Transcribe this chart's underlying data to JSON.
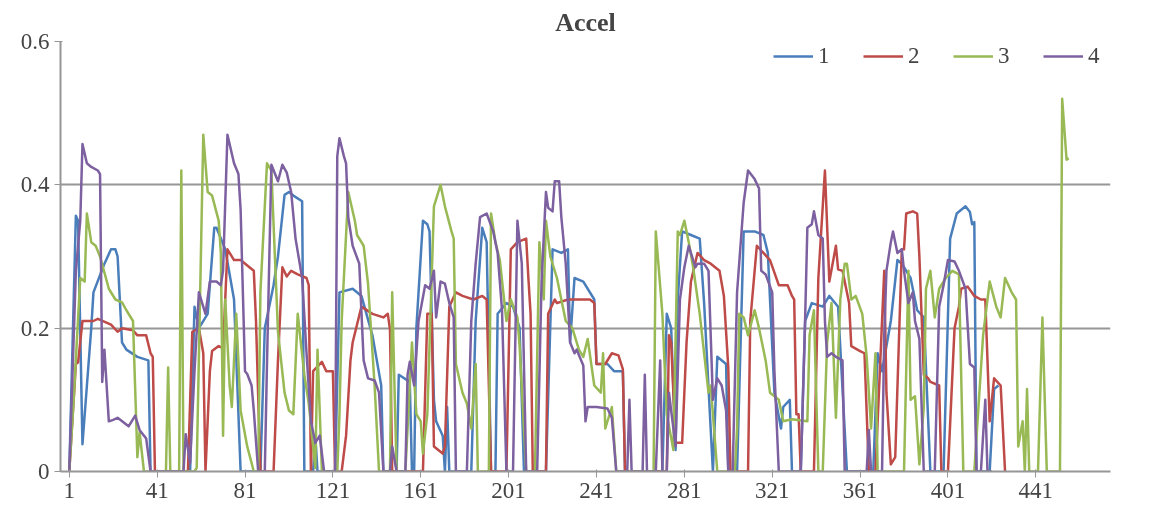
{
  "chart_data": {
    "type": "line",
    "title": "Accel",
    "xlim": [
      -3,
      475
    ],
    "xticks": [
      1,
      41,
      81,
      121,
      161,
      201,
      241,
      281,
      321,
      361,
      401,
      441
    ],
    "ylim": [
      0,
      0.6
    ],
    "yticks": [
      0,
      0.2,
      0.4,
      0.6
    ],
    "grid": "y",
    "legend": "top right",
    "marker": "none",
    "line_style": "solid",
    "series": [
      {
        "name": "1",
        "color": "#4a7ebb",
        "x": [
          1,
          4,
          5,
          7,
          11,
          12,
          17,
          20,
          22,
          23,
          25,
          27,
          32,
          37,
          38,
          56,
          58,
          60,
          64,
          67,
          68,
          72,
          76,
          79,
          88,
          90,
          94,
          96,
          99,
          101,
          103,
          107,
          108,
          112,
          113,
          114,
          122,
          124,
          130,
          134,
          139,
          143,
          144,
          150,
          151,
          156,
          157,
          158,
          159,
          162,
          164,
          165,
          167,
          168,
          171,
          172,
          173,
          174,
          184,
          186,
          189,
          191,
          193,
          195,
          196,
          200,
          203,
          206,
          208,
          218,
          221,
          225,
          228,
          229,
          231,
          235,
          240,
          241,
          246,
          249,
          253,
          254,
          271,
          273,
          275,
          277,
          278,
          280,
          284,
          288,
          290,
          294,
          296,
          300,
          301,
          305,
          308,
          313,
          317,
          319,
          322,
          325,
          326,
          329,
          330,
          334,
          336,
          339,
          344,
          347,
          351,
          355,
          367,
          369,
          371,
          375,
          378,
          380,
          384,
          387,
          390,
          393,
          399,
          402,
          405,
          409,
          411,
          412,
          413,
          414,
          420,
          422,
          424
        ],
        "values": [
          0,
          0.357,
          0.35,
          0.038,
          0.2,
          0.25,
          0.29,
          0.31,
          0.31,
          0.3,
          0.18,
          0.17,
          0.16,
          0.155,
          0,
          0,
          0.23,
          0.2,
          0.22,
          0.34,
          0.34,
          0.31,
          0.24,
          0,
          0,
          0.2,
          0.26,
          0.3,
          0.386,
          0.39,
          0.385,
          0.377,
          0,
          0,
          0.05,
          0,
          0,
          0.25,
          0.255,
          0.245,
          0.19,
          0.12,
          0,
          0,
          0.135,
          0.125,
          0,
          0,
          0.2,
          0.35,
          0.345,
          0.335,
          0.1,
          0.07,
          0.05,
          0,
          0.09,
          0,
          0,
          0.21,
          0.34,
          0.32,
          0,
          0,
          0.22,
          0.235,
          0.23,
          0.2,
          0,
          0,
          0.31,
          0.305,
          0.31,
          0.18,
          0.27,
          0.265,
          0.24,
          0.15,
          0.15,
          0.14,
          0.14,
          0,
          0,
          0.22,
          0.2,
          0.03,
          0.24,
          0.335,
          0.33,
          0.325,
          0.235,
          0,
          0.16,
          0.15,
          0,
          0,
          0.335,
          0.335,
          0.33,
          0.305,
          0.11,
          0.06,
          0.09,
          0.1,
          0,
          0,
          0.21,
          0.235,
          0.23,
          0.245,
          0.23,
          0,
          0,
          0.165,
          0.14,
          0.21,
          0.295,
          0.29,
          0.27,
          0.225,
          0.215,
          0,
          0,
          0.325,
          0.36,
          0.37,
          0.362,
          0.345,
          0.348,
          0,
          0,
          0.115,
          0.12
        ]
      },
      {
        "name": "2",
        "color": "#be4b48",
        "x": [
          1,
          4,
          5,
          7,
          12,
          14,
          20,
          23,
          25,
          30,
          32,
          36,
          38,
          39,
          40,
          55,
          57,
          60,
          62,
          63,
          65,
          66,
          69,
          71,
          73,
          76,
          79,
          83,
          85,
          86,
          88,
          94,
          96,
          98,
          100,
          102,
          105,
          109,
          110,
          111,
          112,
          116,
          118,
          121,
          122,
          125,
          127,
          129,
          130,
          134,
          139,
          144,
          146,
          147,
          148,
          162,
          164,
          166,
          167,
          171,
          172,
          174,
          177,
          180,
          185,
          189,
          191,
          193,
          200,
          202,
          205,
          209,
          210,
          211,
          212,
          218,
          219,
          222,
          223,
          228,
          232,
          238,
          240,
          241,
          245,
          248,
          251,
          253,
          254,
          273,
          274,
          275,
          277,
          280,
          282,
          284,
          287,
          290,
          293,
          297,
          299,
          301,
          302,
          310,
          311,
          314,
          317,
          320,
          324,
          328,
          330,
          331,
          332,
          333,
          334,
          340,
          342,
          345,
          347,
          350,
          351,
          353,
          356,
          357,
          361,
          363,
          365,
          368,
          372,
          373,
          375,
          377,
          380,
          381,
          382,
          385,
          387,
          388,
          390,
          392,
          393,
          397,
          398,
          401,
          404,
          406,
          407,
          410,
          413,
          416,
          418,
          420,
          422,
          425,
          427
        ],
        "values": [
          0,
          0.15,
          0.152,
          0.21,
          0.21,
          0.213,
          0.205,
          0.195,
          0.2,
          0.197,
          0.19,
          0.19,
          0.165,
          0.16,
          0,
          0,
          0.195,
          0.2,
          0.165,
          0,
          0.14,
          0.168,
          0.175,
          0.172,
          0.31,
          0.295,
          0.295,
          0.285,
          0.28,
          0.21,
          0,
          0,
          0.155,
          0.285,
          0.272,
          0.28,
          0.275,
          0.27,
          0.26,
          0,
          0.14,
          0.153,
          0.14,
          0.14,
          0,
          0,
          0.05,
          0.155,
          0.18,
          0.23,
          0.22,
          0.215,
          0.22,
          0.198,
          0,
          0,
          0.22,
          0.22,
          0.035,
          0.025,
          0.035,
          0.23,
          0.25,
          0.245,
          0.24,
          0.245,
          0.24,
          0,
          0,
          0.31,
          0.32,
          0.325,
          0.27,
          0.22,
          0,
          0,
          0.22,
          0.24,
          0.235,
          0.24,
          0.24,
          0.24,
          0.235,
          0.15,
          0.15,
          0.165,
          0.162,
          0.143,
          0,
          0,
          0.19,
          0.18,
          0.04,
          0.04,
          0.18,
          0.265,
          0.305,
          0.295,
          0.29,
          0.28,
          0.245,
          0.145,
          0,
          0,
          0.21,
          0.315,
          0.305,
          0.295,
          0.26,
          0.26,
          0.245,
          0.24,
          0.08,
          0.08,
          0,
          0,
          0.27,
          0.42,
          0.265,
          0.315,
          0.282,
          0.28,
          0.235,
          0.175,
          0.168,
          0.165,
          0,
          0,
          0.28,
          0.11,
          0.01,
          0.02,
          0.31,
          0.31,
          0.36,
          0.363,
          0.36,
          0.3,
          0.135,
          0.13,
          0.125,
          0.12,
          0,
          0,
          0.2,
          0.23,
          0.255,
          0.258,
          0.245,
          0.24,
          0.24,
          0.07,
          0.13,
          0.12,
          0
        ]
      },
      {
        "name": "3",
        "color": "#98b954",
        "x": [
          1,
          3,
          6,
          8,
          9,
          11,
          13,
          15,
          19,
          22,
          25,
          27,
          30,
          32,
          33,
          35,
          45,
          46,
          47,
          51,
          52,
          53,
          58,
          59,
          62,
          64,
          66,
          69,
          70,
          71,
          72,
          74,
          75,
          77,
          79,
          82,
          85,
          87,
          88,
          90,
          91,
          93,
          96,
          99,
          101,
          103,
          105,
          108,
          110,
          113,
          114,
          116,
          123,
          124,
          125,
          128,
          131,
          132,
          135,
          137,
          140,
          142,
          147,
          148,
          150,
          154,
          157,
          159,
          161,
          162,
          164,
          167,
          170,
          172,
          175,
          176,
          177,
          180,
          182,
          184,
          186,
          187,
          192,
          193,
          195,
          197,
          200,
          202,
          205,
          206,
          209,
          213,
          215,
          217,
          218,
          220,
          223,
          227,
          230,
          233,
          235,
          237,
          240,
          243,
          244,
          245,
          248,
          250,
          267,
          268,
          271,
          273,
          276,
          278,
          279,
          281,
          283,
          285,
          288,
          292,
          293,
          296,
          304,
          305,
          306,
          308,
          310,
          313,
          315,
          318,
          320,
          324,
          326,
          330,
          337,
          338,
          340,
          342,
          344,
          346,
          348,
          350,
          352,
          354,
          355,
          357,
          359,
          362,
          364,
          366,
          368,
          369,
          381,
          383,
          384,
          386,
          388,
          390,
          391,
          393,
          395,
          397,
          400,
          403,
          406,
          408,
          413,
          417,
          420,
          423,
          425,
          427,
          430,
          432,
          433,
          435,
          436,
          437,
          438,
          442,
          444,
          446,
          452,
          453,
          455,
          456
        ],
        "values": [
          0,
          0.1,
          0.27,
          0.265,
          0.36,
          0.32,
          0.315,
          0.3,
          0.255,
          0.24,
          0.236,
          0.225,
          0.21,
          0.02,
          0.055,
          0,
          0,
          0.145,
          0,
          0,
          0.42,
          0,
          0,
          0.005,
          0.47,
          0.39,
          0.385,
          0.35,
          0.305,
          0.05,
          0.24,
          0.12,
          0.09,
          0.22,
          0.085,
          0.035,
          0,
          0,
          0.25,
          0.37,
          0.43,
          0.42,
          0.195,
          0.11,
          0.085,
          0.08,
          0.22,
          0.135,
          0.095,
          0.005,
          0.17,
          0,
          0,
          0.08,
          0.21,
          0.39,
          0.35,
          0.33,
          0.315,
          0.262,
          0.12,
          0,
          0,
          0.25,
          0,
          0,
          0.18,
          0.08,
          0.07,
          0.025,
          0.08,
          0.37,
          0.4,
          0.37,
          0.335,
          0.325,
          0.15,
          0.11,
          0.095,
          0.06,
          0.15,
          0,
          0,
          0.36,
          0.32,
          0.295,
          0.21,
          0.24,
          0.215,
          0.175,
          0,
          0,
          0.32,
          0.24,
          0.35,
          0.3,
          0.27,
          0.21,
          0.2,
          0.17,
          0.16,
          0.185,
          0.12,
          0.11,
          0.165,
          0.06,
          0.09,
          0,
          0,
          0.335,
          0.22,
          0.08,
          0.03,
          0.335,
          0.33,
          0.35,
          0.32,
          0.285,
          0.22,
          0.11,
          0.12,
          0,
          0,
          0.06,
          0.22,
          0.215,
          0.19,
          0.225,
          0.2,
          0.155,
          0.11,
          0.1,
          0.07,
          0.073,
          0.07,
          0.19,
          0.225,
          0,
          0,
          0.18,
          0.235,
          0.075,
          0.24,
          0.29,
          0.29,
          0.24,
          0.245,
          0.22,
          0.16,
          0.06,
          0.165,
          0,
          0,
          0.28,
          0.1,
          0.105,
          0.01,
          0.09,
          0.255,
          0.28,
          0.215,
          0.255,
          0.27,
          0.28,
          0.275,
          0,
          0,
          0.19,
          0.265,
          0.23,
          0.215,
          0.27,
          0.25,
          0.24,
          0.035,
          0.07,
          0,
          0.115,
          0,
          0,
          0.215,
          0,
          0,
          0.52,
          0.435,
          0.437
        ]
      },
      {
        "name": "4",
        "color": "#7d60a0",
        "x": [
          1,
          4,
          6,
          7,
          9,
          11,
          14,
          15,
          16,
          17,
          19,
          21,
          23,
          28,
          31,
          33,
          36,
          38,
          53,
          54,
          56,
          58,
          60,
          63,
          65,
          68,
          70,
          71,
          73,
          76,
          78,
          79,
          81,
          82,
          84,
          85,
          87,
          90,
          91,
          93,
          96,
          98,
          100,
          102,
          104,
          107,
          109,
          111,
          113,
          115,
          117,
          122,
          123,
          124,
          126,
          127,
          128,
          130,
          133,
          135,
          137,
          140,
          142,
          144,
          147,
          148,
          150,
          154,
          155,
          156,
          158,
          160,
          163,
          165,
          167,
          168,
          170,
          172,
          174,
          176,
          177,
          182,
          184,
          186,
          188,
          191,
          194,
          196,
          198,
          200,
          203,
          205,
          207,
          209,
          214,
          216,
          218,
          219,
          221,
          222,
          224,
          225,
          227,
          229,
          231,
          232,
          235,
          236,
          237,
          241,
          246,
          248,
          250,
          255,
          256,
          257,
          262,
          263,
          264,
          268,
          270,
          271,
          273,
          274,
          277,
          279,
          281,
          283,
          286,
          287,
          290,
          292,
          294,
          296,
          298,
          300,
          301,
          303,
          305,
          308,
          310,
          313,
          315,
          316,
          318,
          321,
          322,
          324,
          334,
          336,
          337,
          339,
          340,
          342,
          344,
          345,
          346,
          348,
          350,
          353,
          354,
          364,
          365,
          366,
          371,
          372,
          373,
          375,
          376,
          378,
          380,
          381,
          383,
          385,
          386,
          388,
          390,
          395,
          397,
          399,
          401,
          404,
          406,
          409,
          411,
          413,
          414,
          416,
          418,
          419,
          421
        ],
        "values": [
          0,
          0.28,
          0.35,
          0.457,
          0.43,
          0.425,
          0.42,
          0.415,
          0.125,
          0.17,
          0.07,
          0.072,
          0.075,
          0.063,
          0.078,
          0.058,
          0.046,
          0,
          0,
          0.052,
          0.012,
          0.14,
          0.25,
          0.22,
          0.265,
          0.265,
          0.26,
          0.28,
          0.47,
          0.43,
          0.415,
          0.365,
          0.14,
          0.136,
          0.12,
          0.085,
          0,
          0,
          0.15,
          0.428,
          0.405,
          0.428,
          0.417,
          0.39,
          0.325,
          0.27,
          0.165,
          0.07,
          0.04,
          0.05,
          0,
          0,
          0.44,
          0.465,
          0.44,
          0.43,
          0.355,
          0.315,
          0.29,
          0.155,
          0.13,
          0.127,
          0.11,
          0,
          0,
          0.035,
          0,
          0,
          0.135,
          0.153,
          0.12,
          0.21,
          0.26,
          0.255,
          0.28,
          0.215,
          0.265,
          0.262,
          0.235,
          0.215,
          0,
          0,
          0.21,
          0.29,
          0.355,
          0.36,
          0.335,
          0.305,
          0.225,
          0,
          0,
          0.35,
          0.29,
          0,
          0,
          0.265,
          0.39,
          0.368,
          0.363,
          0.405,
          0.405,
          0.355,
          0.29,
          0.18,
          0.165,
          0.17,
          0.148,
          0.07,
          0.09,
          0.09,
          0.088,
          0.075,
          0,
          0,
          0.1,
          0,
          0,
          0.135,
          0,
          0,
          0.155,
          0,
          0,
          0.11,
          0.035,
          0.24,
          0.285,
          0.315,
          0.285,
          0.29,
          0.29,
          0.28,
          0.1,
          0.13,
          0.12,
          0.085,
          0,
          0,
          0.25,
          0.375,
          0.42,
          0.408,
          0.395,
          0.28,
          0.275,
          0.25,
          0.14,
          0,
          0,
          0.215,
          0.34,
          0.345,
          0.363,
          0.33,
          0.325,
          0.21,
          0.16,
          0.165,
          0.16,
          0.155,
          0,
          0,
          0.058,
          0,
          0,
          0.19,
          0.28,
          0.32,
          0.335,
          0.305,
          0.31,
          0.28,
          0.235,
          0.25,
          0.21,
          0.185,
          0,
          0,
          0.23,
          0.26,
          0.295,
          0.293,
          0.28,
          0.255,
          0.15,
          0.145,
          0,
          0,
          0.1,
          0,
          0
        ]
      }
    ]
  }
}
